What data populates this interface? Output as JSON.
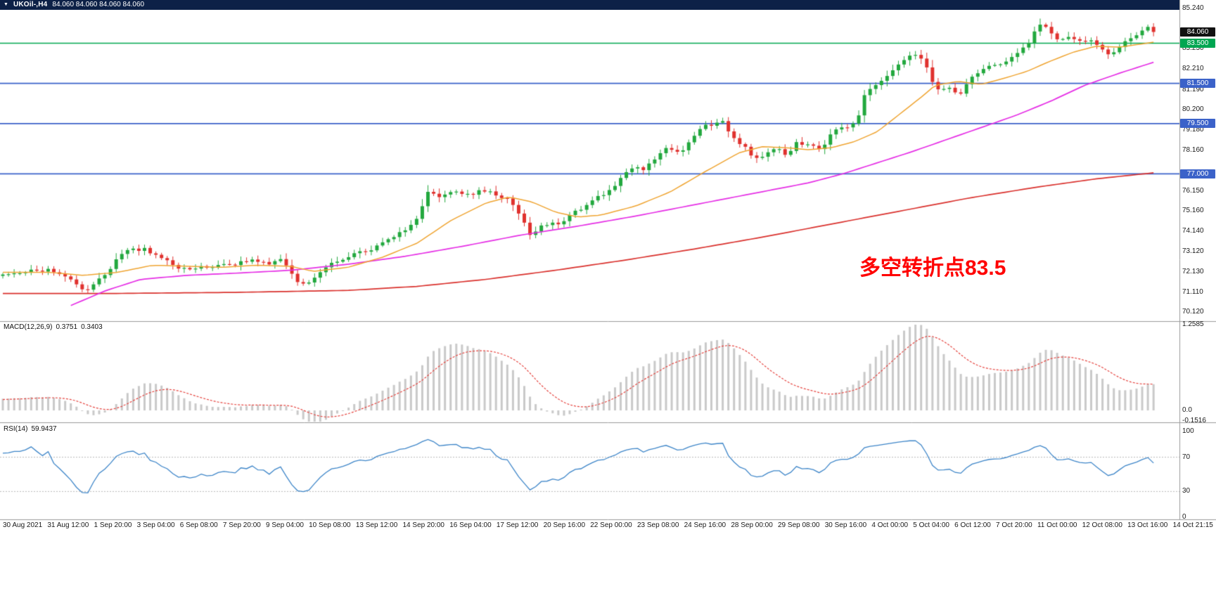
{
  "title_bar": {
    "symbol_timeframe": "UKOil-,H4",
    "ohlc": "84.060 84.060 84.060 84.060"
  },
  "annotation": {
    "text": "多空转折点83.5",
    "color": "#ff0000"
  },
  "price_scale": {
    "ticks": [
      {
        "label": "85.240",
        "value": 85.24
      },
      {
        "label": "83.230",
        "value": 83.23
      },
      {
        "label": "82.210",
        "value": 82.21
      },
      {
        "label": "81.190",
        "value": 81.19
      },
      {
        "label": "80.200",
        "value": 80.2
      },
      {
        "label": "79.180",
        "value": 79.18
      },
      {
        "label": "78.160",
        "value": 78.16
      },
      {
        "label": "76.150",
        "value": 76.15
      },
      {
        "label": "75.160",
        "value": 75.16
      },
      {
        "label": "74.140",
        "value": 74.14
      },
      {
        "label": "73.120",
        "value": 73.12
      },
      {
        "label": "72.130",
        "value": 72.13
      },
      {
        "label": "71.110",
        "value": 71.11
      },
      {
        "label": "70.120",
        "value": 70.12
      }
    ],
    "badges": [
      {
        "label": "84.060",
        "price": 84.06,
        "bg": "#111111"
      },
      {
        "label": "83.500",
        "price": 83.5,
        "bg": "#00a651"
      },
      {
        "label": "81.500",
        "price": 81.5,
        "bg": "#3b62c9"
      },
      {
        "label": "79.500",
        "price": 79.5,
        "bg": "#3b62c9"
      },
      {
        "label": "77.000",
        "price": 77.0,
        "bg": "#3b62c9"
      }
    ]
  },
  "macd_panel": {
    "label": "MACD(12,26,9)",
    "value_main": "0.3751",
    "value_signal": "0.3403",
    "axis": [
      {
        "label": "1.2585",
        "value": 1.2585
      },
      {
        "label": "0.0",
        "value": 0
      },
      {
        "label": "-0.1516",
        "value": -0.1516
      }
    ]
  },
  "rsi_panel": {
    "label": "RSI(14)",
    "value": "59.9437",
    "axis": [
      {
        "label": "100",
        "value": 100
      },
      {
        "label": "70",
        "value": 70
      },
      {
        "label": "30",
        "value": 30
      },
      {
        "label": "0",
        "value": 0
      }
    ]
  },
  "time_axis": {
    "labels": [
      "30 Aug 2021",
      "31 Aug 12:00",
      "1 Sep 20:00",
      "3 Sep 04:00",
      "6 Sep 08:00",
      "7 Sep 20:00",
      "9 Sep 04:00",
      "10 Sep 08:00",
      "13 Sep 12:00",
      "14 Sep 20:00",
      "16 Sep 04:00",
      "17 Sep 12:00",
      "20 Sep 16:00",
      "22 Sep 00:00",
      "23 Sep 08:00",
      "24 Sep 16:00",
      "28 Sep 00:00",
      "29 Sep 08:00",
      "30 Sep 16:00",
      "4 Oct 00:00",
      "5 Oct 04:00",
      "6 Oct 12:00",
      "7 Oct 20:00",
      "11 Oct 00:00",
      "12 Oct 08:00",
      "13 Oct 16:00",
      "14 Oct 21:15"
    ]
  },
  "chart_data": {
    "type": "candlestick",
    "symbol": "UKOil-",
    "timeframe": "H4",
    "title": "UKOil-,H4 84.060 84.060 84.060 84.060",
    "ylim": [
      69.67,
      85.16
    ],
    "candle_count": 204,
    "last_close": 84.06,
    "colors": {
      "up": "#22a83e",
      "down": "#e0312e"
    },
    "hlines": [
      {
        "price": 83.5,
        "color": "#00a651"
      },
      {
        "price": 81.5,
        "color": "#3b62c9"
      },
      {
        "price": 79.5,
        "color": "#3b62c9"
      },
      {
        "price": 77.0,
        "color": "#3b62c9"
      }
    ],
    "close_waypoints": [
      [
        0.0,
        71.95
      ],
      [
        0.02,
        72.1
      ],
      [
        0.04,
        72.25
      ],
      [
        0.055,
        71.9
      ],
      [
        0.07,
        71.15
      ],
      [
        0.085,
        71.8
      ],
      [
        0.105,
        73.1
      ],
      [
        0.122,
        73.3
      ],
      [
        0.133,
        72.9
      ],
      [
        0.153,
        72.3
      ],
      [
        0.18,
        72.35
      ],
      [
        0.2,
        72.5
      ],
      [
        0.213,
        72.7
      ],
      [
        0.233,
        72.55
      ],
      [
        0.243,
        72.85
      ],
      [
        0.256,
        71.55
      ],
      [
        0.263,
        71.5
      ],
      [
        0.273,
        72.0
      ],
      [
        0.286,
        72.5
      ],
      [
        0.3,
        72.9
      ],
      [
        0.312,
        73.15
      ],
      [
        0.326,
        73.35
      ],
      [
        0.339,
        73.9
      ],
      [
        0.352,
        74.3
      ],
      [
        0.362,
        75.0
      ],
      [
        0.369,
        76.2
      ],
      [
        0.379,
        75.9
      ],
      [
        0.392,
        76.1
      ],
      [
        0.405,
        76.0
      ],
      [
        0.419,
        76.2
      ],
      [
        0.432,
        75.9
      ],
      [
        0.442,
        75.6
      ],
      [
        0.452,
        74.8
      ],
      [
        0.459,
        73.95
      ],
      [
        0.465,
        74.3
      ],
      [
        0.475,
        74.6
      ],
      [
        0.485,
        74.5
      ],
      [
        0.492,
        75.0
      ],
      [
        0.502,
        75.2
      ],
      [
        0.512,
        75.6
      ],
      [
        0.522,
        76.0
      ],
      [
        0.532,
        76.4
      ],
      [
        0.541,
        77.0
      ],
      [
        0.548,
        77.4
      ],
      [
        0.558,
        77.2
      ],
      [
        0.568,
        77.9
      ],
      [
        0.578,
        78.3
      ],
      [
        0.588,
        78.1
      ],
      [
        0.598,
        78.6
      ],
      [
        0.608,
        79.3
      ],
      [
        0.618,
        79.5
      ],
      [
        0.625,
        79.6
      ],
      [
        0.634,
        78.9
      ],
      [
        0.645,
        78.3
      ],
      [
        0.654,
        77.7
      ],
      [
        0.664,
        78.0
      ],
      [
        0.674,
        78.3
      ],
      [
        0.681,
        77.9
      ],
      [
        0.691,
        78.6
      ],
      [
        0.701,
        78.4
      ],
      [
        0.711,
        78.2
      ],
      [
        0.721,
        79.1
      ],
      [
        0.731,
        79.3
      ],
      [
        0.741,
        79.5
      ],
      [
        0.751,
        81.2
      ],
      [
        0.761,
        81.4
      ],
      [
        0.771,
        81.9
      ],
      [
        0.781,
        82.6
      ],
      [
        0.791,
        82.9
      ],
      [
        0.8,
        82.8
      ],
      [
        0.807,
        81.6
      ],
      [
        0.814,
        81.1
      ],
      [
        0.824,
        81.4
      ],
      [
        0.831,
        80.9
      ],
      [
        0.841,
        81.7
      ],
      [
        0.85,
        82.1
      ],
      [
        0.86,
        82.4
      ],
      [
        0.87,
        82.6
      ],
      [
        0.88,
        83.0
      ],
      [
        0.89,
        83.3
      ],
      [
        0.9,
        84.4
      ],
      [
        0.907,
        84.2
      ],
      [
        0.917,
        83.7
      ],
      [
        0.927,
        83.9
      ],
      [
        0.937,
        83.5
      ],
      [
        0.944,
        83.8
      ],
      [
        0.953,
        83.3
      ],
      [
        0.963,
        82.9
      ],
      [
        0.973,
        83.4
      ],
      [
        0.983,
        83.9
      ],
      [
        0.993,
        84.3
      ],
      [
        1.0,
        84.06
      ]
    ],
    "moving_averages": [
      {
        "name": "ma-slow-red",
        "color": "#d9302c",
        "width": 1.7,
        "points": [
          [
            0.0,
            71.05
          ],
          [
            0.1,
            71.05
          ],
          [
            0.2,
            71.1
          ],
          [
            0.3,
            71.2
          ],
          [
            0.36,
            71.4
          ],
          [
            0.42,
            71.75
          ],
          [
            0.48,
            72.2
          ],
          [
            0.54,
            72.7
          ],
          [
            0.6,
            73.25
          ],
          [
            0.66,
            73.85
          ],
          [
            0.72,
            74.5
          ],
          [
            0.78,
            75.15
          ],
          [
            0.84,
            75.8
          ],
          [
            0.9,
            76.35
          ],
          [
            0.95,
            76.75
          ],
          [
            1.0,
            77.05
          ]
        ]
      },
      {
        "name": "ma-mid-magenta",
        "color": "#e52ee5",
        "width": 1.7,
        "points": [
          [
            0.055,
            70.35
          ],
          [
            0.09,
            71.2
          ],
          [
            0.12,
            71.75
          ],
          [
            0.16,
            71.95
          ],
          [
            0.2,
            72.05
          ],
          [
            0.25,
            72.2
          ],
          [
            0.3,
            72.5
          ],
          [
            0.35,
            72.9
          ],
          [
            0.4,
            73.4
          ],
          [
            0.45,
            73.95
          ],
          [
            0.5,
            74.4
          ],
          [
            0.55,
            74.9
          ],
          [
            0.6,
            75.45
          ],
          [
            0.65,
            76.0
          ],
          [
            0.7,
            76.55
          ],
          [
            0.73,
            77.0
          ],
          [
            0.76,
            77.55
          ],
          [
            0.79,
            78.1
          ],
          [
            0.82,
            78.7
          ],
          [
            0.85,
            79.3
          ],
          [
            0.88,
            79.9
          ],
          [
            0.91,
            80.6
          ],
          [
            0.94,
            81.4
          ],
          [
            0.97,
            82.0
          ],
          [
            1.0,
            82.55
          ]
        ]
      },
      {
        "name": "ma-fast-orange",
        "color": "#efa431",
        "width": 1.5,
        "points": [
          [
            0.0,
            72.1
          ],
          [
            0.04,
            72.1
          ],
          [
            0.07,
            71.95
          ],
          [
            0.1,
            72.1
          ],
          [
            0.13,
            72.45
          ],
          [
            0.16,
            72.4
          ],
          [
            0.19,
            72.35
          ],
          [
            0.22,
            72.45
          ],
          [
            0.25,
            72.4
          ],
          [
            0.27,
            72.15
          ],
          [
            0.3,
            72.35
          ],
          [
            0.33,
            72.85
          ],
          [
            0.36,
            73.55
          ],
          [
            0.39,
            74.7
          ],
          [
            0.42,
            75.55
          ],
          [
            0.44,
            75.85
          ],
          [
            0.46,
            75.6
          ],
          [
            0.48,
            75.1
          ],
          [
            0.5,
            74.85
          ],
          [
            0.52,
            74.95
          ],
          [
            0.55,
            75.4
          ],
          [
            0.58,
            76.1
          ],
          [
            0.61,
            77.1
          ],
          [
            0.64,
            78.05
          ],
          [
            0.66,
            78.35
          ],
          [
            0.68,
            78.3
          ],
          [
            0.7,
            78.2
          ],
          [
            0.72,
            78.3
          ],
          [
            0.74,
            78.6
          ],
          [
            0.76,
            79.1
          ],
          [
            0.78,
            80.0
          ],
          [
            0.8,
            80.9
          ],
          [
            0.81,
            81.4
          ],
          [
            0.83,
            81.6
          ],
          [
            0.85,
            81.45
          ],
          [
            0.87,
            81.75
          ],
          [
            0.89,
            82.1
          ],
          [
            0.91,
            82.6
          ],
          [
            0.93,
            83.05
          ],
          [
            0.95,
            83.35
          ],
          [
            0.97,
            83.3
          ],
          [
            1.0,
            83.55
          ]
        ]
      }
    ],
    "indicators": {
      "macd": {
        "fast": 12,
        "slow": 26,
        "signal": 9,
        "display_max": 1.2585,
        "display_min": -0.1516,
        "histogram_color": "#c9c9c9",
        "signal_color": "#e5433e"
      },
      "rsi": {
        "period": 14,
        "levels": [
          70,
          30
        ],
        "line_color": "#3d85c8",
        "level_color": "#b9b9b9"
      }
    }
  }
}
